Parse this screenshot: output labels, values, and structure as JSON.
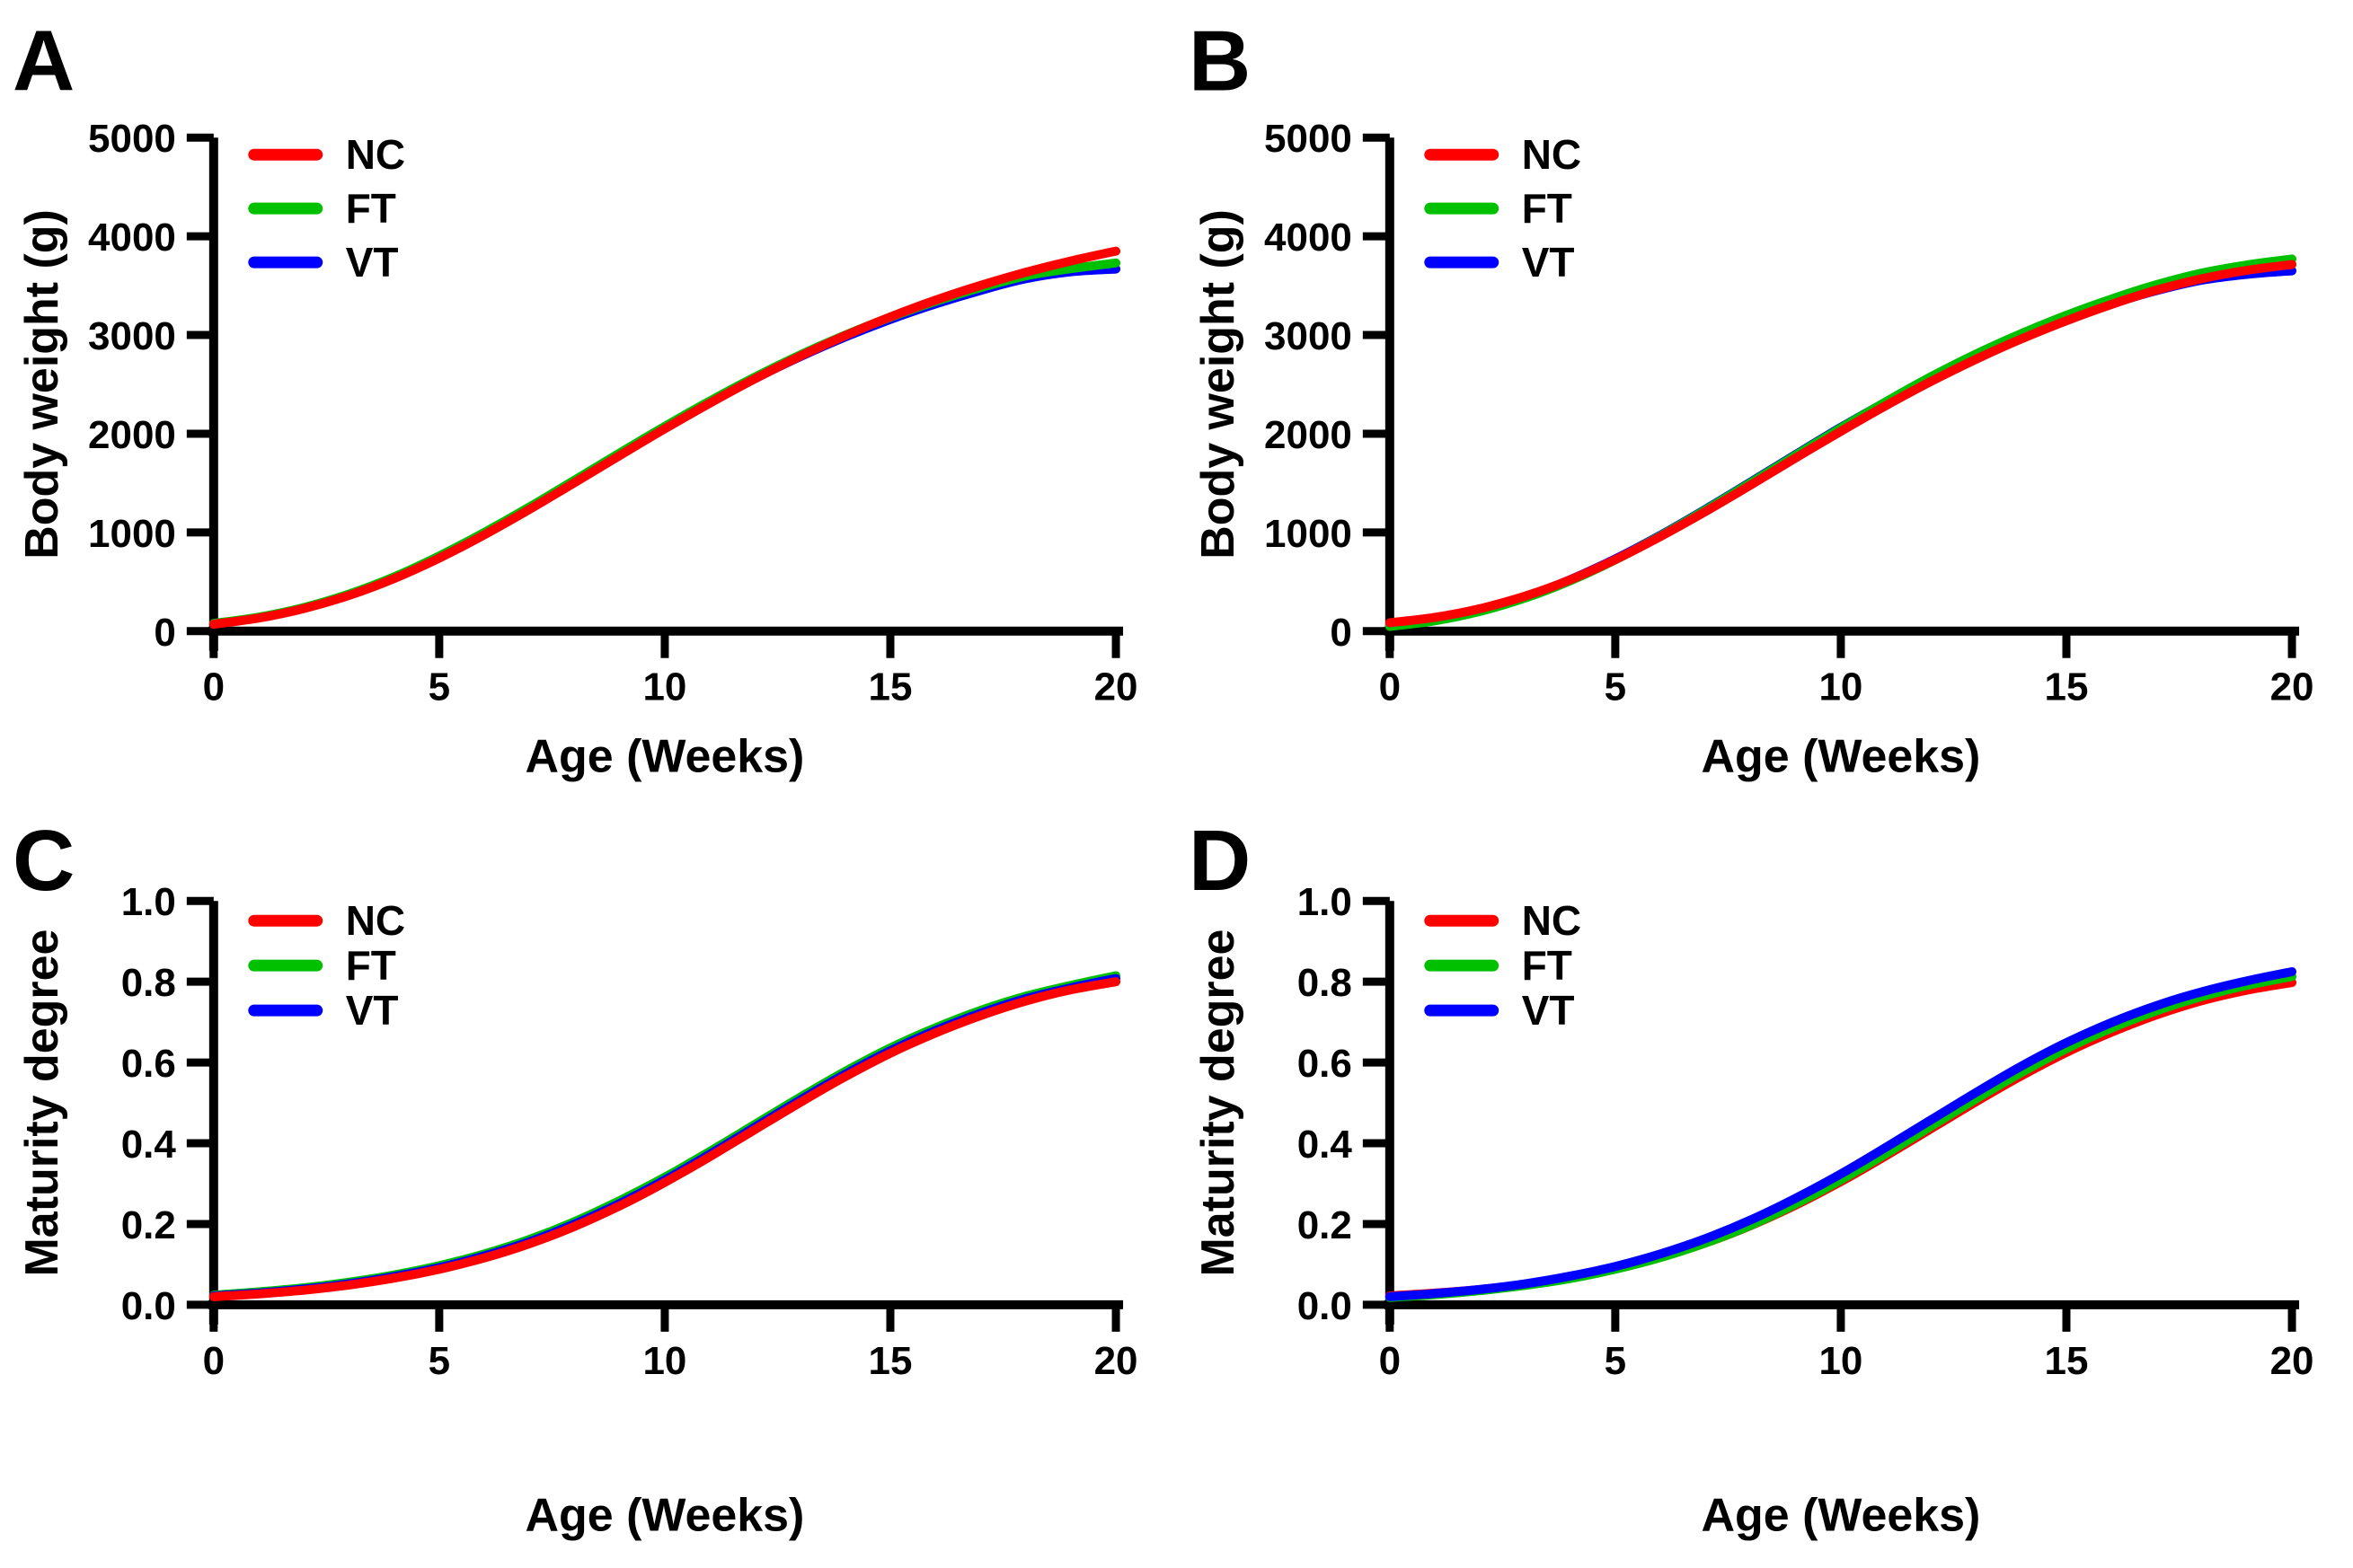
{
  "figure": {
    "background": "#ffffff",
    "axis_color": "#000000",
    "panel_letters": [
      "A",
      "B",
      "C",
      "D"
    ]
  },
  "legend": {
    "entries": [
      {
        "label": "NC",
        "color": "#ff0000"
      },
      {
        "label": "FT",
        "color": "#00c000"
      },
      {
        "label": "VT",
        "color": "#0000ff"
      }
    ],
    "position": "inside top-left"
  },
  "chart_data": [
    {
      "panel": "A",
      "type": "line",
      "xlabel": "Age (Weeks)",
      "ylabel": "Body weight (g)",
      "xlim": [
        0,
        20
      ],
      "ylim": [
        0,
        5000
      ],
      "xticks": [
        0,
        5,
        10,
        15,
        20
      ],
      "xtick_labels": [
        "0",
        "5",
        "10",
        "15",
        "20"
      ],
      "yticks": [
        0,
        1000,
        2000,
        3000,
        4000,
        5000
      ],
      "ytick_labels": [
        "0",
        "1000",
        "2000",
        "3000",
        "4000",
        "5000"
      ],
      "grid": false,
      "legend_position": "top-left",
      "x": [
        0,
        1,
        2,
        3,
        4,
        5,
        6,
        7,
        8,
        9,
        10,
        11,
        12,
        13,
        14,
        15,
        16,
        17,
        18,
        19,
        20
      ],
      "series": [
        {
          "name": "NC",
          "color": "#ff0000",
          "values": [
            70,
            133,
            229,
            362,
            533,
            740,
            976,
            1234,
            1505,
            1779,
            2050,
            2310,
            2557,
            2785,
            2994,
            3184,
            3353,
            3503,
            3635,
            3750,
            3850
          ]
        },
        {
          "name": "FT",
          "color": "#00c000",
          "values": [
            78,
            142,
            240,
            376,
            550,
            762,
            1000,
            1258,
            1530,
            1805,
            2075,
            2332,
            2575,
            2798,
            3000,
            3180,
            3340,
            3480,
            3598,
            3672,
            3730
          ]
        },
        {
          "name": "VT",
          "color": "#0000ff",
          "values": [
            74,
            138,
            234,
            369,
            541,
            750,
            988,
            1246,
            1517,
            1791,
            2061,
            2316,
            2558,
            2780,
            2980,
            3158,
            3315,
            3452,
            3570,
            3640,
            3668
          ]
        }
      ],
      "draw_order": [
        "VT",
        "FT",
        "NC"
      ]
    },
    {
      "panel": "B",
      "type": "line",
      "xlabel": "Age (Weeks)",
      "ylabel": "Body weight (g)",
      "xlim": [
        0,
        20
      ],
      "ylim": [
        0,
        5000
      ],
      "xticks": [
        0,
        5,
        10,
        15,
        20
      ],
      "xtick_labels": [
        "0",
        "5",
        "10",
        "15",
        "20"
      ],
      "yticks": [
        0,
        1000,
        2000,
        3000,
        4000,
        5000
      ],
      "ytick_labels": [
        "0",
        "1000",
        "2000",
        "3000",
        "4000",
        "5000"
      ],
      "grid": false,
      "legend_position": "top-left",
      "x": [
        0,
        1,
        2,
        3,
        4,
        5,
        6,
        7,
        8,
        9,
        10,
        11,
        12,
        13,
        14,
        15,
        16,
        17,
        18,
        19,
        20
      ],
      "series": [
        {
          "name": "NC",
          "color": "#ff0000",
          "values": [
            85,
            140,
            228,
            355,
            520,
            725,
            958,
            1212,
            1480,
            1755,
            2025,
            2285,
            2530,
            2755,
            2960,
            3145,
            3310,
            3455,
            3570,
            3655,
            3715
          ]
        },
        {
          "name": "FT",
          "color": "#00c000",
          "values": [
            48,
            105,
            200,
            335,
            510,
            722,
            965,
            1228,
            1503,
            1782,
            2058,
            2325,
            2578,
            2808,
            3015,
            3200,
            3365,
            3510,
            3628,
            3710,
            3770
          ]
        },
        {
          "name": "VT",
          "color": "#0000ff",
          "values": [
            55,
            112,
            208,
            345,
            522,
            732,
            972,
            1235,
            1510,
            1790,
            2065,
            2322,
            2560,
            2782,
            2982,
            3158,
            3315,
            3450,
            3555,
            3615,
            3650
          ]
        }
      ],
      "draw_order": [
        "VT",
        "FT",
        "NC"
      ]
    },
    {
      "panel": "C",
      "type": "line",
      "xlabel": "Age (Weeks)",
      "ylabel": "Maturity degree",
      "xlim": [
        0,
        20
      ],
      "ylim": [
        0,
        1.0
      ],
      "xticks": [
        0,
        5,
        10,
        15,
        20
      ],
      "xtick_labels": [
        "0",
        "5",
        "10",
        "15",
        "20"
      ],
      "yticks": [
        0,
        0.2,
        0.4,
        0.6,
        0.8,
        1.0
      ],
      "ytick_labels": [
        "0.0",
        "0.2",
        "0.4",
        "0.6",
        "0.8",
        "1.0"
      ],
      "grid": false,
      "legend_position": "top-left",
      "x": [
        0,
        1,
        2,
        3,
        4,
        5,
        6,
        7,
        8,
        9,
        10,
        11,
        12,
        13,
        14,
        15,
        16,
        17,
        18,
        19,
        20
      ],
      "series": [
        {
          "name": "NC",
          "color": "#ff0000",
          "values": [
            0.02,
            0.027,
            0.036,
            0.049,
            0.066,
            0.088,
            0.116,
            0.151,
            0.194,
            0.245,
            0.303,
            0.367,
            0.434,
            0.501,
            0.565,
            0.623,
            0.673,
            0.716,
            0.752,
            0.78,
            0.8
          ]
        },
        {
          "name": "FT",
          "color": "#00c000",
          "values": [
            0.024,
            0.032,
            0.042,
            0.056,
            0.074,
            0.097,
            0.126,
            0.162,
            0.206,
            0.258,
            0.316,
            0.38,
            0.447,
            0.514,
            0.578,
            0.636,
            0.686,
            0.729,
            0.764,
            0.791,
            0.815
          ]
        },
        {
          "name": "VT",
          "color": "#0000ff",
          "values": [
            0.022,
            0.029,
            0.039,
            0.052,
            0.07,
            0.092,
            0.121,
            0.156,
            0.2,
            0.251,
            0.309,
            0.373,
            0.44,
            0.507,
            0.571,
            0.629,
            0.679,
            0.722,
            0.758,
            0.785,
            0.808
          ]
        }
      ],
      "draw_order": [
        "FT",
        "VT",
        "NC"
      ]
    },
    {
      "panel": "D",
      "type": "line",
      "xlabel": "Age (Weeks)",
      "ylabel": "Maturity degree",
      "xlim": [
        0,
        20
      ],
      "ylim": [
        0,
        1.0
      ],
      "xticks": [
        0,
        5,
        10,
        15,
        20
      ],
      "xtick_labels": [
        "0",
        "5",
        "10",
        "15",
        "20"
      ],
      "yticks": [
        0,
        0.2,
        0.4,
        0.6,
        0.8,
        1.0
      ],
      "ytick_labels": [
        "0.0",
        "0.2",
        "0.4",
        "0.6",
        "0.8",
        "1.0"
      ],
      "grid": false,
      "legend_position": "top-left",
      "x": [
        0,
        1,
        2,
        3,
        4,
        5,
        6,
        7,
        8,
        9,
        10,
        11,
        12,
        13,
        14,
        15,
        16,
        17,
        18,
        19,
        20
      ],
      "series": [
        {
          "name": "NC",
          "color": "#ff0000",
          "values": [
            0.022,
            0.029,
            0.038,
            0.051,
            0.068,
            0.09,
            0.118,
            0.153,
            0.196,
            0.247,
            0.305,
            0.369,
            0.436,
            0.503,
            0.567,
            0.625,
            0.675,
            0.718,
            0.753,
            0.779,
            0.798
          ]
        },
        {
          "name": "FT",
          "color": "#00c000",
          "values": [
            0.018,
            0.025,
            0.035,
            0.048,
            0.065,
            0.088,
            0.117,
            0.153,
            0.197,
            0.25,
            0.309,
            0.374,
            0.442,
            0.51,
            0.575,
            0.634,
            0.685,
            0.728,
            0.763,
            0.791,
            0.813
          ]
        },
        {
          "name": "VT",
          "color": "#0000ff",
          "values": [
            0.02,
            0.028,
            0.038,
            0.052,
            0.071,
            0.095,
            0.126,
            0.164,
            0.21,
            0.264,
            0.324,
            0.39,
            0.458,
            0.526,
            0.591,
            0.649,
            0.699,
            0.741,
            0.775,
            0.802,
            0.825
          ]
        }
      ],
      "draw_order": [
        "NC",
        "FT",
        "VT"
      ]
    }
  ]
}
